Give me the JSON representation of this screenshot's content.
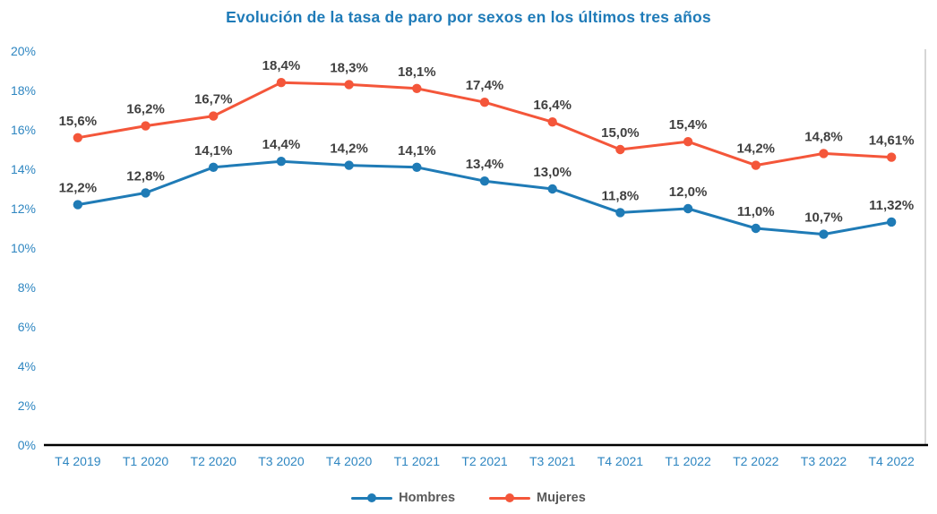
{
  "title": "Evolución de la tasa de paro por sexos en los últimos tres años",
  "colors": {
    "title": "#1F7BB8",
    "axis_labels": "#2E86C1",
    "hombres": "#1F7BB6",
    "mujeres": "#F4563A",
    "data_label": "#404040",
    "legend_text": "#595959",
    "axis_line": "#000000",
    "plot_border_right": "#BFBFBF",
    "background": "#FFFFFF"
  },
  "chart_data": {
    "type": "line",
    "title": "Evolución de la tasa de paro por sexos en los últimos tres años",
    "xlabel": "",
    "ylabel": "",
    "ylim": [
      0,
      20
    ],
    "ytick_step": 2,
    "ytick_labels": [
      "0%",
      "2%",
      "4%",
      "6%",
      "8%",
      "10%",
      "12%",
      "14%",
      "16%",
      "18%",
      "20%"
    ],
    "grid": false,
    "legend_position": "bottom",
    "marker": "circle",
    "categories": [
      "T4 2019",
      "T1 2020",
      "T2 2020",
      "T3 2020",
      "T4 2020",
      "T1 2021",
      "T2 2021",
      "T3 2021",
      "T4 2021",
      "T1 2022",
      "T2 2022",
      "T3 2022",
      "T4 2022"
    ],
    "series": [
      {
        "name": "Hombres",
        "color_key": "hombres",
        "values": [
          12.2,
          12.8,
          14.1,
          14.4,
          14.2,
          14.1,
          13.4,
          13.0,
          11.8,
          12.0,
          11.0,
          10.7,
          11.32
        ],
        "labels": [
          "12,2%",
          "12,8%",
          "14,1%",
          "14,4%",
          "14,2%",
          "14,1%",
          "13,4%",
          "13,0%",
          "11,8%",
          "12,0%",
          "11,0%",
          "10,7%",
          "11,32%"
        ]
      },
      {
        "name": "Mujeres",
        "color_key": "mujeres",
        "values": [
          15.6,
          16.2,
          16.7,
          18.4,
          18.3,
          18.1,
          17.4,
          16.4,
          15.0,
          15.4,
          14.2,
          14.8,
          14.61
        ],
        "labels": [
          "15,6%",
          "16,2%",
          "16,7%",
          "18,4%",
          "18,3%",
          "18,1%",
          "17,4%",
          "16,4%",
          "15,0%",
          "15,4%",
          "14,2%",
          "14,8%",
          "14,61%"
        ]
      }
    ]
  },
  "legend": {
    "items": [
      {
        "label": "Hombres",
        "color_key": "hombres"
      },
      {
        "label": "Mujeres",
        "color_key": "mujeres"
      }
    ]
  }
}
